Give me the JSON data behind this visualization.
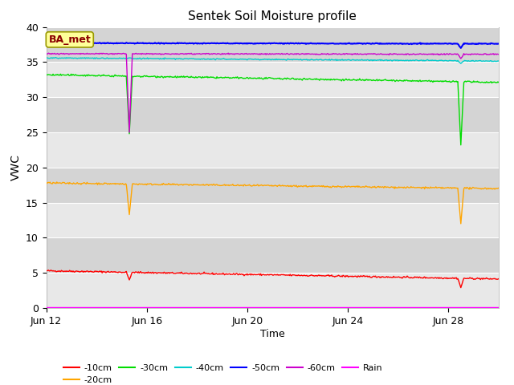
{
  "title": "Sentek Soil Moisture profile",
  "xlabel": "Time",
  "ylabel": "VWC",
  "xlim_days": [
    0,
    18
  ],
  "ylim": [
    0,
    40
  ],
  "yticks": [
    0,
    5,
    10,
    15,
    20,
    25,
    30,
    35,
    40
  ],
  "xtick_labels": [
    "Jun 12",
    "Jun 16",
    "Jun 20",
    "Jun 24",
    "Jun 28"
  ],
  "xtick_positions": [
    0,
    4,
    8,
    12,
    16
  ],
  "fig_bg_color": "#ffffff",
  "plot_bg_color": "#e8e8e8",
  "annotation_label": "BA_met",
  "annotation_box_facecolor": "#ffff99",
  "annotation_box_edgecolor": "#999900",
  "annotation_text_color": "#8b0000",
  "annotation_fontsize": 9,
  "lines": {
    "d10": {
      "color": "#ff0000",
      "label": "-10cm",
      "base": 5.3,
      "trend": -0.065,
      "noise": 0.06,
      "spike1_x": 3.3,
      "spike1_y": 4.0,
      "spike2_x": 16.5,
      "spike2_y": 2.9
    },
    "d20": {
      "color": "#ffa500",
      "label": "-20cm",
      "base": 17.8,
      "trend": -0.045,
      "noise": 0.06,
      "spike1_x": 3.3,
      "spike1_y": 13.3,
      "spike2_x": 16.5,
      "spike2_y": 12.0
    },
    "d30": {
      "color": "#00dd00",
      "label": "-30cm",
      "base": 33.2,
      "trend": -0.06,
      "noise": 0.06,
      "spike1_x": 3.3,
      "spike1_y": 24.8,
      "spike2_x": 16.5,
      "spike2_y": 23.2
    },
    "d40": {
      "color": "#00cccc",
      "label": "-40cm",
      "base": 35.6,
      "trend": -0.025,
      "noise": 0.04,
      "spike1_x": 3.3,
      "spike1_y": 35.6,
      "spike2_x": 16.5,
      "spike2_y": 34.8
    },
    "d50": {
      "color": "#0000ff",
      "label": "-50cm",
      "base": 37.7,
      "trend": -0.005,
      "noise": 0.03,
      "spike1_x": 3.3,
      "spike1_y": 37.7,
      "spike2_x": 16.5,
      "spike2_y": 37.0
    },
    "d60": {
      "color": "#cc00cc",
      "label": "-60cm",
      "base": 36.2,
      "trend": -0.005,
      "noise": 0.04,
      "spike1_x": 3.3,
      "spike1_y": 25.0,
      "spike2_x": 16.5,
      "spike2_y": 35.5
    },
    "rain": {
      "color": "#ff00ff",
      "label": "Rain",
      "base": 0.15
    }
  },
  "grid_color": "#ffffff",
  "grid_linewidth": 0.8,
  "band_color": "#d8d8d8",
  "title_fontsize": 11,
  "tick_fontsize": 9,
  "legend_fontsize": 8
}
